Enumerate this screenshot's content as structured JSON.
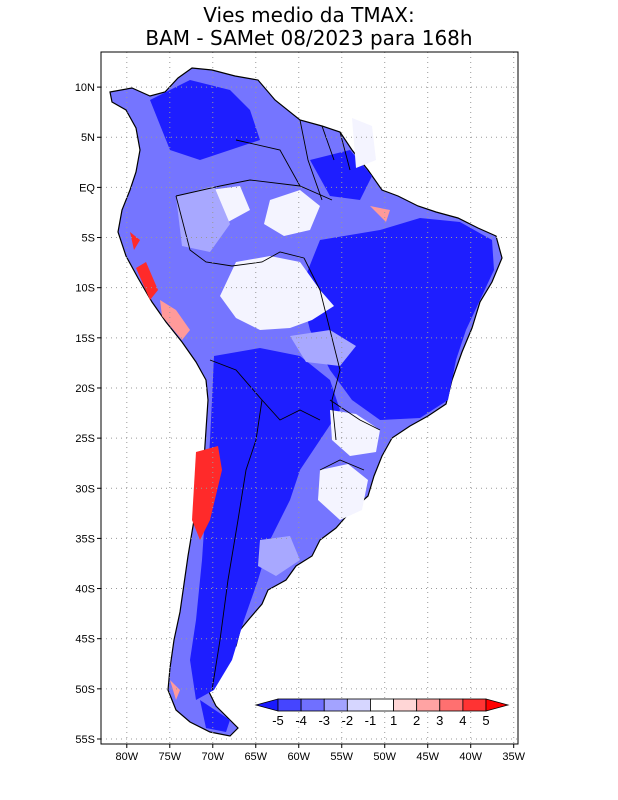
{
  "title": {
    "line1": "Vies medio da TMAX:",
    "line2": "BAM - SAMet 08/2023  para 168h"
  },
  "axes": {
    "lat_labels": [
      "10N",
      "5N",
      "EQ",
      "5S",
      "10S",
      "15S",
      "20S",
      "25S",
      "30S",
      "35S",
      "40S",
      "45S",
      "50S",
      "55S"
    ],
    "lat_values": [
      10,
      5,
      0,
      -5,
      -10,
      -15,
      -20,
      -25,
      -30,
      -35,
      -40,
      -45,
      -50,
      -55
    ],
    "lon_labels": [
      "80W",
      "75W",
      "70W",
      "65W",
      "60W",
      "55W",
      "50W",
      "45W",
      "40W",
      "35W"
    ],
    "lon_values": [
      -80,
      -75,
      -70,
      -65,
      -60,
      -55,
      -50,
      -45,
      -40,
      -35
    ],
    "lat_range": [
      -55.5,
      13.5
    ],
    "lon_range": [
      -83,
      -34.5
    ]
  },
  "colorbar": {
    "labels": [
      "-5",
      "-4",
      "-3",
      "-2",
      "-1",
      "1",
      "2",
      "3",
      "4",
      "5"
    ],
    "colors": [
      "#1a1aff",
      "#4545ff",
      "#7070ff",
      "#a3a3ff",
      "#d6d6ff",
      "#ffffff",
      "#ffd6d6",
      "#ffa3a3",
      "#ff7070",
      "#ff3333",
      "#ff0000"
    ]
  },
  "colors": {
    "grid": "#9a9a9a",
    "coast": "#000000",
    "deep_blue": "#1a1aff"
  }
}
